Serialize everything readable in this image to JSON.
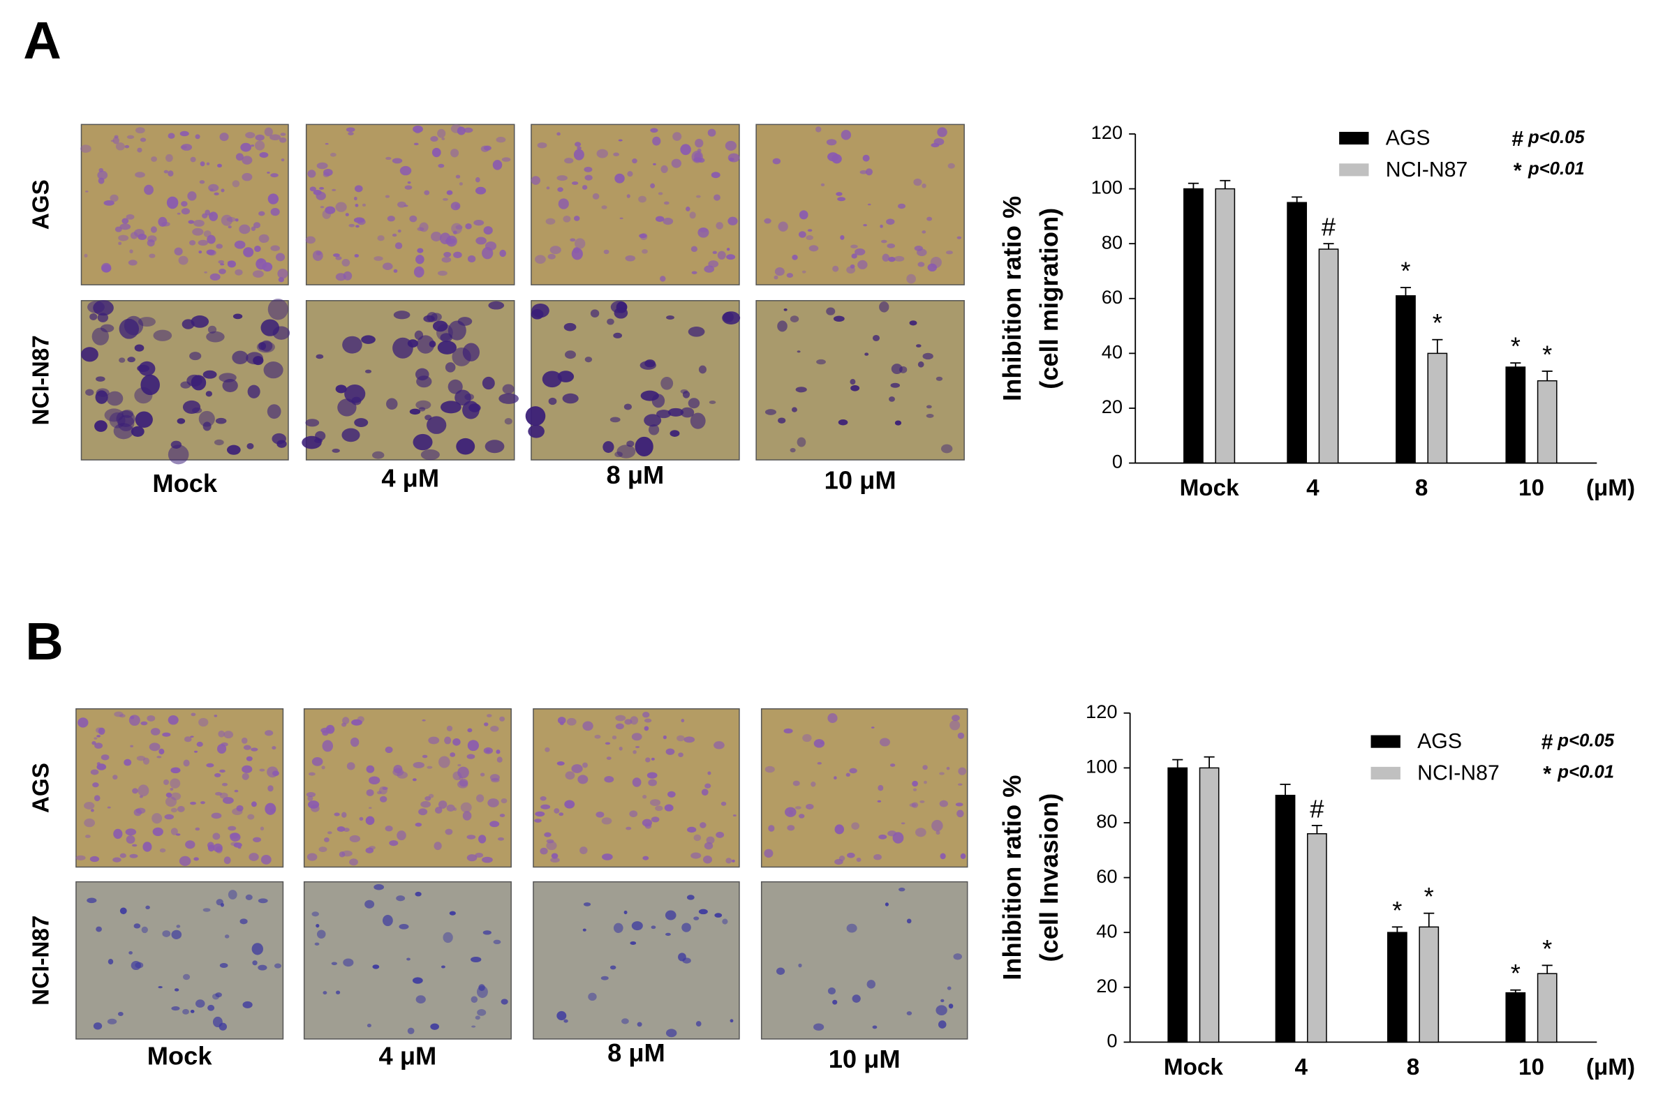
{
  "panels": [
    {
      "label": "A",
      "rows": [
        "AGS",
        "NCI-N87"
      ],
      "columns": [
        "Mock",
        "4 μM",
        "8 μM",
        "10 μM"
      ]
    },
    {
      "label": "B",
      "rows": [
        "AGS",
        "NCI-N87"
      ],
      "columns": [
        "Mock",
        "4 μM",
        "8 μM",
        "10 μM"
      ]
    }
  ],
  "chart_data": [
    {
      "type": "bar",
      "y_label": [
        "Inhibition ratio %",
        "(cell migration)"
      ],
      "x_label": "(μM)",
      "categories": [
        "Mock",
        "4",
        "8",
        "10"
      ],
      "series": [
        {
          "name": "AGS",
          "color": "#000000",
          "values": [
            100,
            95,
            61,
            35
          ],
          "errors": [
            2,
            2,
            3,
            1.5
          ],
          "markers": [
            null,
            null,
            "*",
            "*"
          ]
        },
        {
          "name": "NCI-N87",
          "color": "#c0c0c0",
          "values": [
            100,
            78,
            40,
            30
          ],
          "errors": [
            3,
            2,
            5,
            3.5
          ],
          "markers": [
            null,
            "#",
            "*",
            "*"
          ]
        }
      ],
      "notes": [
        {
          "symbol": "#",
          "text": "p<0.05"
        },
        {
          "symbol": "*",
          "text": "p<0.01"
        }
      ],
      "ylim": [
        0,
        120
      ],
      "yticks": [
        0,
        20,
        40,
        60,
        80,
        100,
        120
      ]
    },
    {
      "type": "bar",
      "y_label": [
        "Inhibition ratio %",
        "(cell Invasion)"
      ],
      "x_label": "(μM)",
      "categories": [
        "Mock",
        "4",
        "8",
        "10"
      ],
      "series": [
        {
          "name": "AGS",
          "color": "#000000",
          "values": [
            100,
            90,
            40,
            18
          ],
          "errors": [
            3,
            4,
            2,
            1
          ],
          "markers": [
            null,
            null,
            "*",
            "*"
          ]
        },
        {
          "name": "NCI-N87",
          "color": "#c0c0c0",
          "values": [
            100,
            76,
            42,
            25
          ],
          "errors": [
            4,
            3,
            5,
            3
          ],
          "markers": [
            null,
            "#",
            "*",
            "*"
          ]
        }
      ],
      "notes": [
        {
          "symbol": "#",
          "text": "p<0.05"
        },
        {
          "symbol": "*",
          "text": "p<0.01"
        }
      ],
      "ylim": [
        0,
        120
      ],
      "yticks": [
        0,
        20,
        40,
        60,
        80,
        100,
        120
      ]
    }
  ]
}
